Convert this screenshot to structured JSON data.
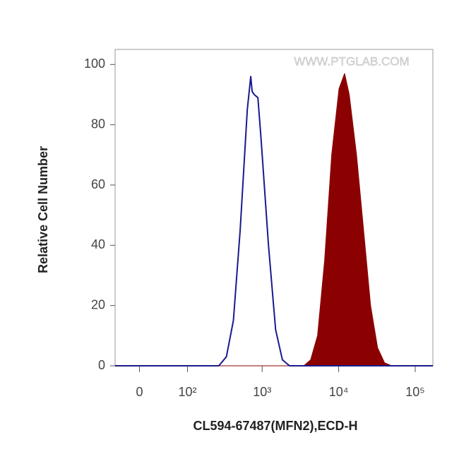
{
  "chart_data": {
    "type": "histogram-overlay",
    "watermark": "WWW.PTGLAB.COM",
    "x_label": "CL594-67487(MFN2),ECD-H",
    "y_label": "Relative Cell Number",
    "xscale": "biexponential",
    "xlim": [
      -40,
      170000
    ],
    "ylim": [
      0,
      105
    ],
    "xticks": [
      0,
      {
        "value": 100,
        "label": "10²"
      },
      {
        "value": 1000,
        "label": "10³"
      },
      {
        "value": 10000,
        "label": "10⁴"
      },
      {
        "value": 100000,
        "label": "10⁵"
      }
    ],
    "yticks": [
      0,
      20,
      40,
      60,
      80,
      100
    ],
    "series": [
      {
        "color": "#8b0000",
        "fill": true,
        "x": [
          -40,
          3500,
          4300,
          5300,
          6550,
          8100,
          10100,
          11950,
          13750,
          17100,
          21150,
          26100,
          32200,
          39700,
          49000,
          170000
        ],
        "values": [
          0,
          0,
          2,
          10,
          35,
          70,
          92,
          97,
          90,
          70,
          45,
          20,
          6,
          1,
          0,
          0
        ]
      },
      {
        "color": "#1a1a8c",
        "fill": false,
        "x": [
          -40,
          270,
          340,
          420,
          515,
          640,
          710,
          740,
          790,
          880,
          970,
          1210,
          1500,
          1840,
          2280,
          170000
        ],
        "values": [
          0,
          0,
          3,
          15,
          45,
          85,
          96,
          91,
          90,
          89,
          75,
          40,
          12,
          2,
          0,
          0
        ]
      }
    ]
  }
}
